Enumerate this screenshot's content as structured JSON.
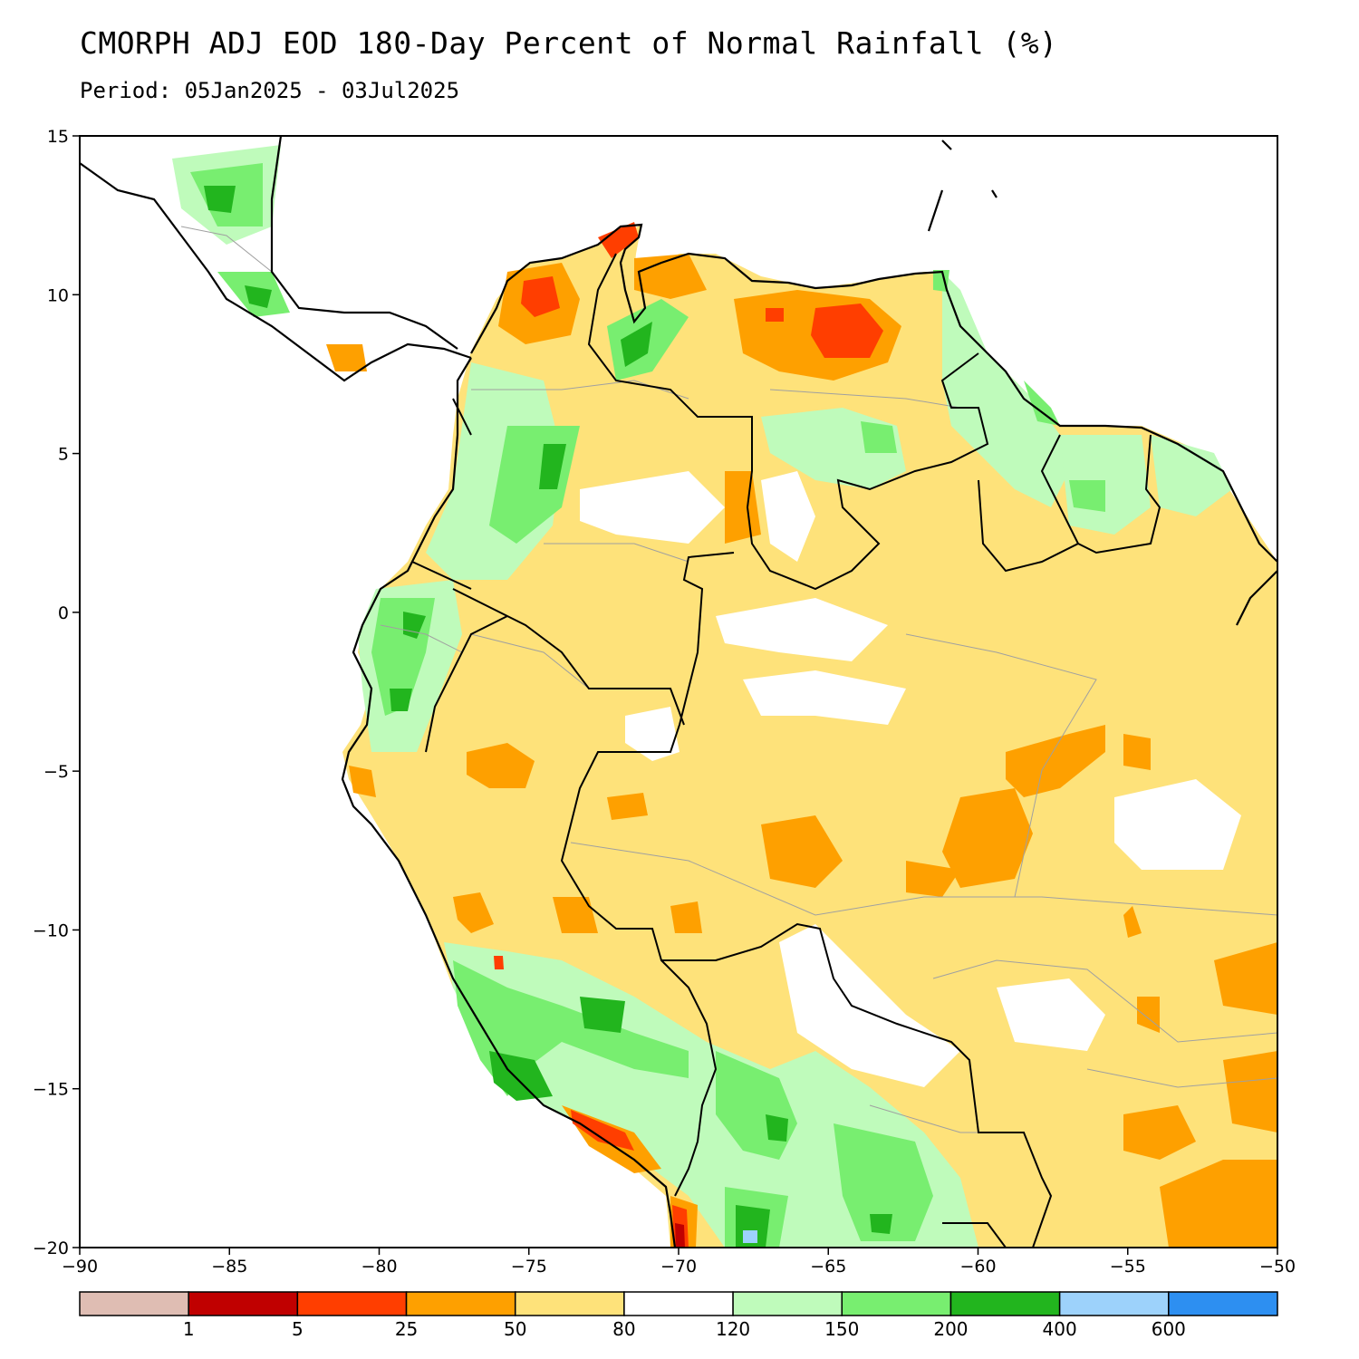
{
  "title": "CMORPH ADJ EOD 180-Day Percent of Normal Rainfall (%)",
  "subtitle": "Period: 05Jan2025 - 03Jul2025",
  "map": {
    "lon_range": [
      -90,
      -50
    ],
    "lat_range": [
      -20,
      15
    ],
    "x_ticks": [
      {
        "value": -90,
        "label": "−90"
      },
      {
        "value": -85,
        "label": "−85"
      },
      {
        "value": -80,
        "label": "−80"
      },
      {
        "value": -75,
        "label": "−75"
      },
      {
        "value": -70,
        "label": "−70"
      },
      {
        "value": -65,
        "label": "−65"
      },
      {
        "value": -60,
        "label": "−60"
      },
      {
        "value": -55,
        "label": "−55"
      },
      {
        "value": -50,
        "label": "−50"
      }
    ],
    "y_ticks": [
      {
        "value": 15,
        "label": "15"
      },
      {
        "value": 10,
        "label": "10"
      },
      {
        "value": 5,
        "label": "5"
      },
      {
        "value": 0,
        "label": "0"
      },
      {
        "value": -5,
        "label": "−5"
      },
      {
        "value": -10,
        "label": "−10"
      },
      {
        "value": -15,
        "label": "−15"
      },
      {
        "value": -20,
        "label": "−20"
      }
    ],
    "colors": {
      "land_normal": "#ffffff",
      "pct_80_120": "#ffffff",
      "pct_50_80": "#fee27a",
      "pct_25_50": "#fea000",
      "pct_5_25": "#ff3e00",
      "pct_1_5": "#c00000",
      "pct_120_150": "#bffbbb",
      "pct_150_200": "#78ee70",
      "pct_200_400": "#22b51e",
      "pct_400_600": "#9dd2fb",
      "coast": "#000000",
      "admin": "#a0a0a0"
    }
  },
  "colorbar": {
    "colors": [
      "#dfbdb3",
      "#c00000",
      "#ff3e00",
      "#fea000",
      "#fee27a",
      "#ffffff",
      "#bffbbb",
      "#78ee70",
      "#22b51e",
      "#9dd2fb",
      "#2d8ff1"
    ],
    "labels": [
      "1",
      "5",
      "25",
      "50",
      "80",
      "120",
      "150",
      "200",
      "400",
      "600"
    ]
  }
}
